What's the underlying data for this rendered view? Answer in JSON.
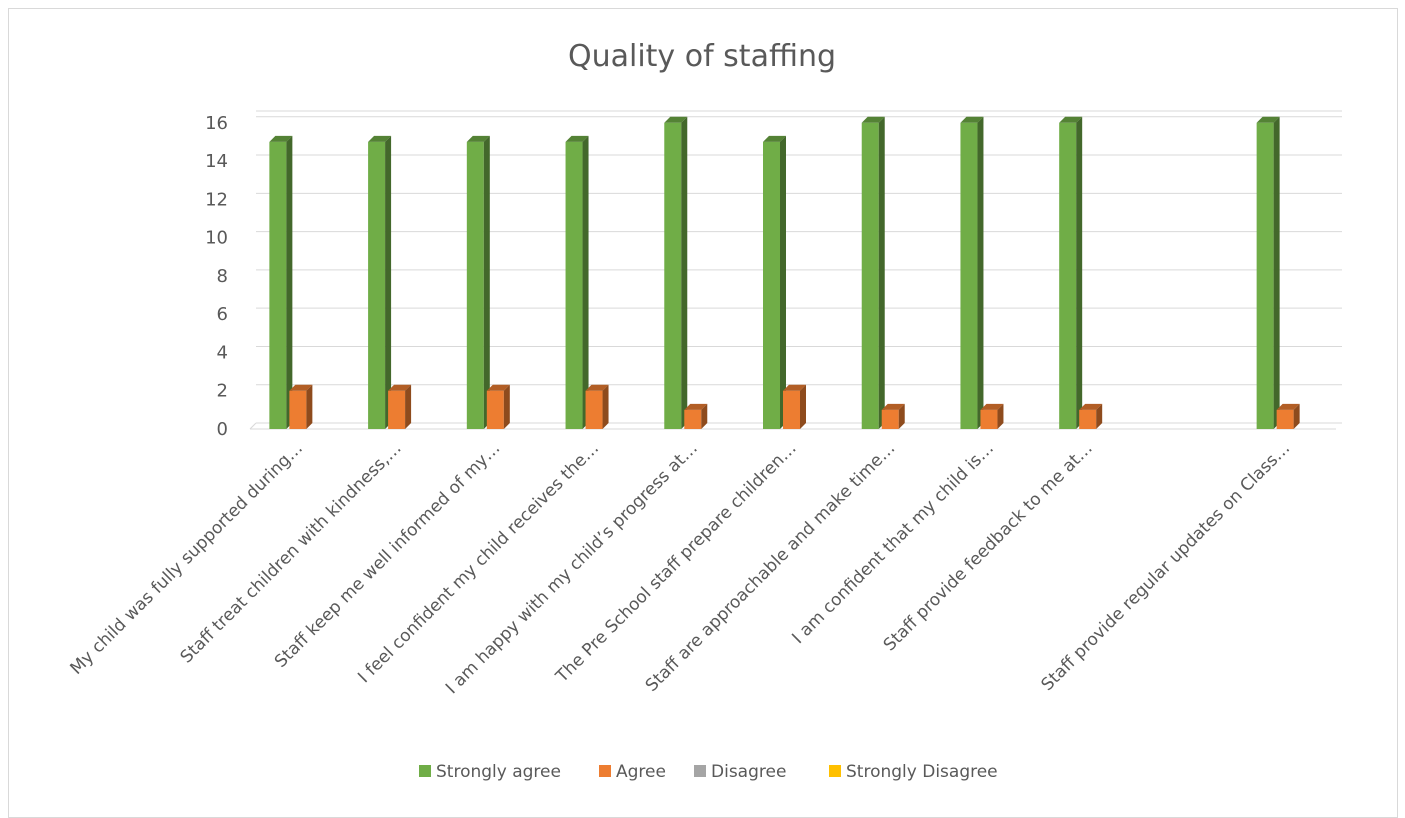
{
  "chart_data": {
    "type": "bar",
    "title": "Quality of staffing",
    "xlabel": "",
    "ylabel": "",
    "ylim": [
      0,
      16
    ],
    "yticks": [
      0,
      2,
      4,
      6,
      8,
      10,
      12,
      14,
      16
    ],
    "grid": true,
    "legend_position": "bottom",
    "categories": [
      "My child was fully supported during…",
      "Staff treat children with kindness,…",
      "Staff keep me well informed of my…",
      "I feel confident my child receives the…",
      "I am happy with my child’s progress at…",
      "The Pre School staff prepare children…",
      "Staff are approachable and make time…",
      "I am confident that my child is…",
      "Staff provide feedback to me at…",
      "",
      "Staff provide regular updates on Class…"
    ],
    "series": [
      {
        "name": "Strongly agree",
        "color": "#70ad47",
        "values": [
          15,
          15,
          15,
          15,
          16,
          15,
          16,
          16,
          16,
          null,
          16
        ]
      },
      {
        "name": "Agree",
        "color": "#ed7d31",
        "values": [
          2,
          2,
          2,
          2,
          1,
          2,
          1,
          1,
          1,
          null,
          1
        ]
      },
      {
        "name": "Disagree",
        "color": "#a5a5a5",
        "values": [
          0,
          0,
          0,
          0,
          0,
          0,
          0,
          0,
          0,
          null,
          0
        ]
      },
      {
        "name": "Strongly Disagree",
        "color": "#ffc000",
        "values": [
          0,
          0,
          0,
          0,
          0,
          0,
          0,
          0,
          0,
          null,
          0
        ]
      }
    ]
  }
}
